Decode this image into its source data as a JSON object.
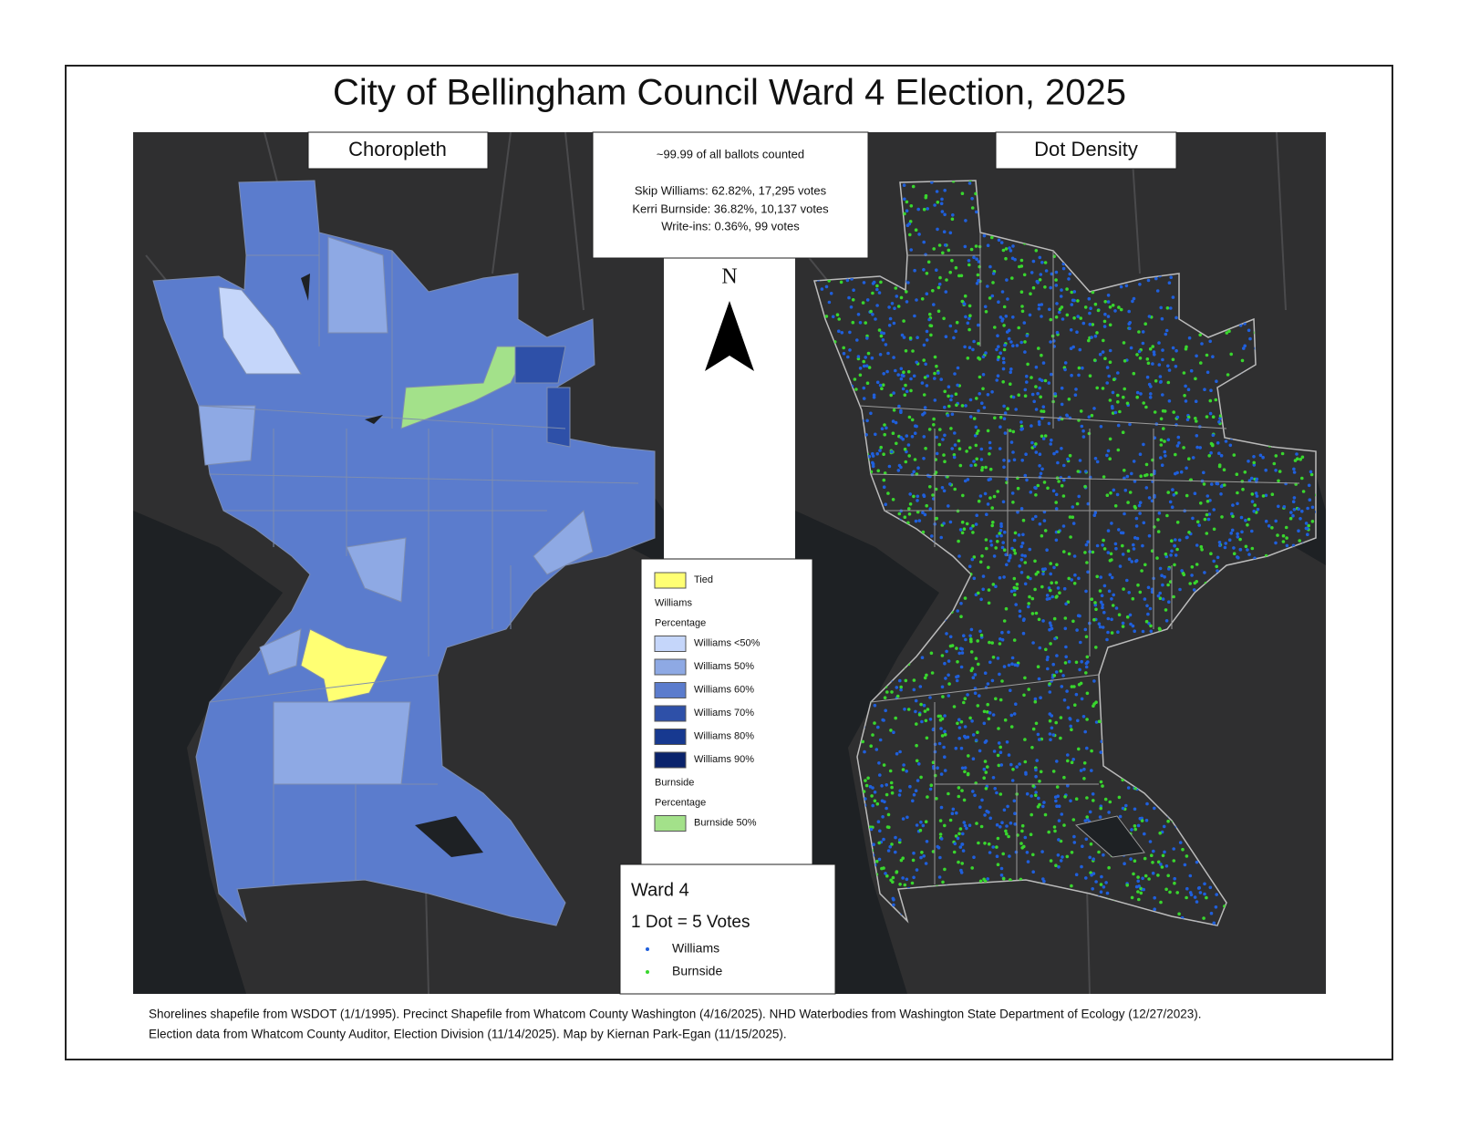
{
  "header": {
    "title": "City of Bellingham Council Ward 4 Election, 2025"
  },
  "panels": {
    "left": "Choropleth",
    "right": "Dot Density"
  },
  "info": {
    "lines": [
      "~99.99 of all ballots counted",
      "Skip Williams: 62.82%, 17,295 votes",
      "Kerri Burnside: 36.82%, 10,137 votes",
      "Write-ins: 0.36%, 99 votes"
    ]
  },
  "north": "N",
  "legend": {
    "entries": [
      {
        "label": "Tied",
        "color": "#ffff73"
      },
      {
        "label": "Williams"
      },
      {
        "label": "Percentage"
      },
      {
        "label": "Williams <50%",
        "color": "#c5d6fa"
      },
      {
        "label": "Williams 50%",
        "color": "#8ea9e4"
      },
      {
        "label": "Williams 60%",
        "color": "#5b7ccd"
      },
      {
        "label": "Williams 70%",
        "color": "#2e50a8"
      },
      {
        "label": "Williams 80%",
        "color": "#173990"
      },
      {
        "label": "Williams 90%",
        "color": "#0a236c"
      },
      {
        "label": "Burnside"
      },
      {
        "label": "Percentage"
      },
      {
        "label": "Burnside 50%",
        "color": "#a3e18a"
      }
    ]
  },
  "dot_legend": {
    "title": "Ward 4",
    "scale": "1 Dot = 5 Votes",
    "items": [
      {
        "label": "Williams",
        "color": "#1f5fdc"
      },
      {
        "label": "Burnside",
        "color": "#39d62e"
      }
    ]
  },
  "footer": {
    "lines": [
      "Shorelines shapefile from WSDOT (1/1/1995). Precinct Shapefile from Whatcom County Washington (4/16/2025). NHD Waterbodies from Washington State Department of Ecology (12/27/2023).",
      "Election data from Whatcom County Auditor, Election Division (11/14/2025). Map by Kiernan Park-Egan (11/15/2025)."
    ]
  }
}
